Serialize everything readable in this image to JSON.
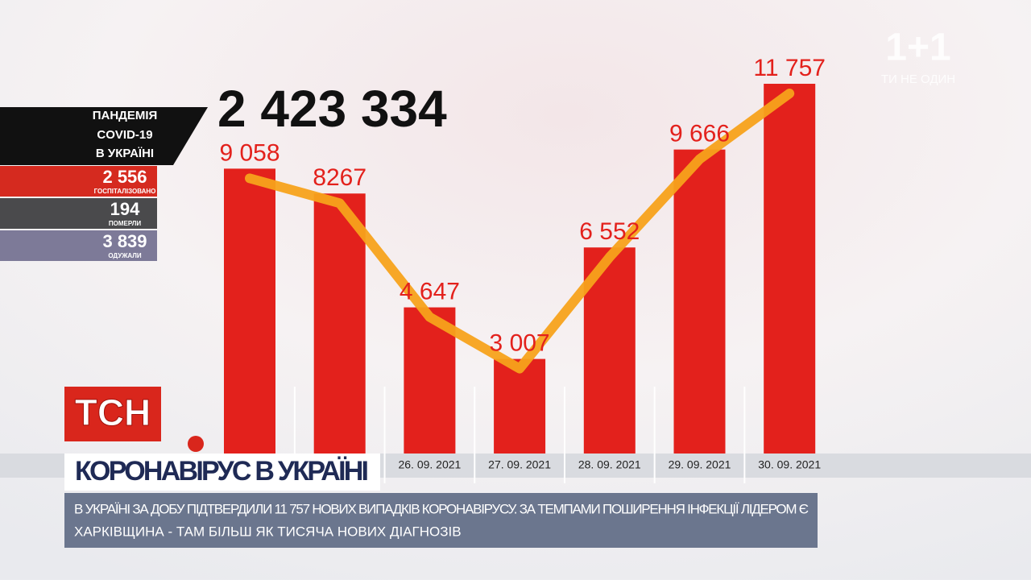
{
  "chart_data": {
    "type": "bar",
    "categories": [
      null,
      null,
      "26. 09. 2021",
      "27. 09. 2021",
      "28. 09. 2021",
      "29. 09. 2021",
      "30. 09. 2021"
    ],
    "values": [
      9058,
      8267,
      4647,
      3007,
      6552,
      9666,
      11757
    ],
    "value_labels": [
      "9 058",
      "8267",
      "4 647",
      "3 007",
      "6 552",
      "9 666",
      "11 757"
    ],
    "color": "#e3211c",
    "line_color": "#f7a21b"
  },
  "total": "2 423 334",
  "panel": {
    "title": [
      "ПАНДЕМІЯ",
      "COVID-19",
      "В УКРАЇНІ"
    ],
    "rows": [
      {
        "value": "2 556",
        "label": "ГОСПІТАЛІЗОВАНО"
      },
      {
        "value": "194",
        "label": "ПОМЕРЛИ"
      },
      {
        "value": "3 839",
        "label": "ОДУЖАЛИ"
      }
    ]
  },
  "logo": {
    "name": "1+1",
    "slogan": "ТИ НЕ ОДИН"
  },
  "news": {
    "brand": "ТСН",
    "headline": "КОРОНАВІРУС В УКРАЇНІ",
    "ticker": [
      "В УКРАЇНІ ЗА ДОБУ ПІДТВЕРДИЛИ 11 757 НОВИХ ВИПАДКІВ КОРОНАВІРУСУ. ЗА ТЕМПАМИ ПОШИРЕННЯ ІНФЕКЦІЇ ЛІДЕРОМ Є",
      "ХАРКІВЩИНА - ТАМ БІЛЬШ ЯК ТИСЯЧА НОВИХ ДІАГНОЗІВ"
    ]
  }
}
